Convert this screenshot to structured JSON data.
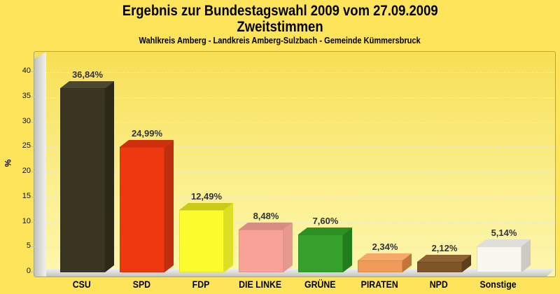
{
  "header": {
    "title_line1": "Ergebnis zur Bundestagswahl 2009 vom 27.09.2009",
    "title_line2": "Zweitstimmen",
    "subtitle": "Wahlkreis Amberg - Landkreis Amberg-Sulzbach - Gemeinde Kümmersbruck"
  },
  "chart_data": {
    "type": "bar",
    "style": "3d-column",
    "title": "Ergebnis zur Bundestagswahl 2009 vom 27.09.2009 – Zweitstimmen",
    "subtitle": "Wahlkreis Amberg - Landkreis Amberg-Sulzbach - Gemeinde Kümmersbruck",
    "xlabel": "",
    "ylabel": "%",
    "ylim": [
      0,
      42.5
    ],
    "yticks": [
      0,
      5,
      10,
      15,
      20,
      25,
      30,
      35,
      40
    ],
    "grid": "horizontal-dashed",
    "legend": "none",
    "categories": [
      "CSU",
      "SPD",
      "FDP",
      "DIE LINKE",
      "GRÜNE",
      "PIRATEN",
      "NPD",
      "Sonstige"
    ],
    "values": [
      36.84,
      24.99,
      12.49,
      8.48,
      7.6,
      2.34,
      2.12,
      5.14
    ],
    "value_labels": [
      "36,84%",
      "24,99%",
      "12,49%",
      "8,48%",
      "7,60%",
      "2,34%",
      "2,12%",
      "5,14%"
    ],
    "bar_colors": [
      {
        "front": "#3b3622",
        "top": "#4e4730",
        "side": "#2c2917"
      },
      {
        "front": "#ee3910",
        "top": "#ce2f0c",
        "side": "#bf2e0e"
      },
      {
        "front": "#fcfd2e",
        "top": "#c9cb16",
        "side": "#dcdf24"
      },
      {
        "front": "#f9a29a",
        "top": "#d98c84",
        "side": "#e79990"
      },
      {
        "front": "#35a02c",
        "top": "#2c9122",
        "side": "#217d1b"
      },
      {
        "front": "#f09b59",
        "top": "#f5a868",
        "side": "#c1763c"
      },
      {
        "front": "#7e5526",
        "top": "#8d6130",
        "side": "#5e3e1b"
      },
      {
        "front": "#f8f8f0",
        "top": "#dededa",
        "side": "#cbcbc3"
      }
    ]
  },
  "colors": {
    "page_background": "#fee45a",
    "plot_gradient_top": "#f7df55",
    "plot_gradient_bottom": "#fdf7ae",
    "plot_border": "#a3a383",
    "wall_floor_gray": "#d5d5d3",
    "gridline": "#e8e8da",
    "value_label_text": "#333333",
    "title_text": "#000000"
  }
}
